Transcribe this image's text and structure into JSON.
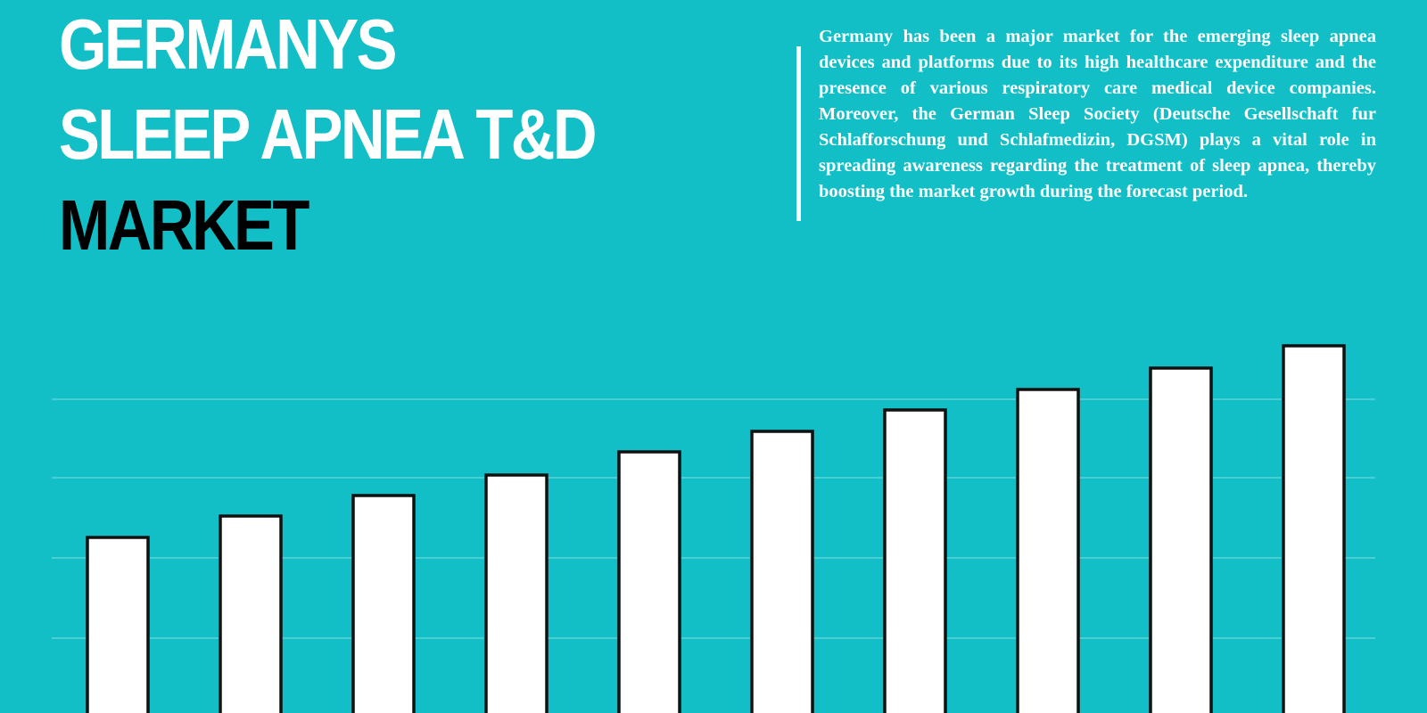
{
  "colors": {
    "background": "#13BFC7",
    "title_primary": "#FFFFFF",
    "title_accent": "#000000",
    "description_text": "#FFFFFF",
    "divider": "#FFFFFF",
    "bar_fill": "#FFFFFF",
    "bar_stroke": "#111111",
    "gridline": "#7FDDE2"
  },
  "header": {
    "title_line1": "GERMANYS",
    "title_line2": "SLEEP APNEA T&D",
    "title_line3": "MARKET"
  },
  "description": {
    "text": "Germany has been a major market for the emerging sleep apnea devices and platforms due to its high healthcare expenditure and the presence of various respiratory care medical device companies. Moreover, the German Sleep Society (Deutsche Gesellschaft fur Schlafforschung und Schlafmedizin, DGSM) plays a vital role in spreading awareness regarding the treatment of sleep apnea, thereby boosting the market growth during the forecast period."
  },
  "chart_data": {
    "type": "bar",
    "title": "",
    "xlabel": "",
    "ylabel": "",
    "categories": [
      "",
      "",
      "",
      "",
      "",
      "",
      "",
      "",
      "",
      ""
    ],
    "values": [
      203,
      227,
      250,
      273,
      299,
      322,
      346,
      369,
      393,
      418
    ],
    "ylim": [
      0,
      400
    ],
    "gridlines": [
      90,
      180,
      270,
      358
    ],
    "grid": true,
    "legend": "none",
    "note": "Values estimated from bar heights relative to the visible gridlines; chart is cropped at bottom and has no printed axis labels."
  }
}
